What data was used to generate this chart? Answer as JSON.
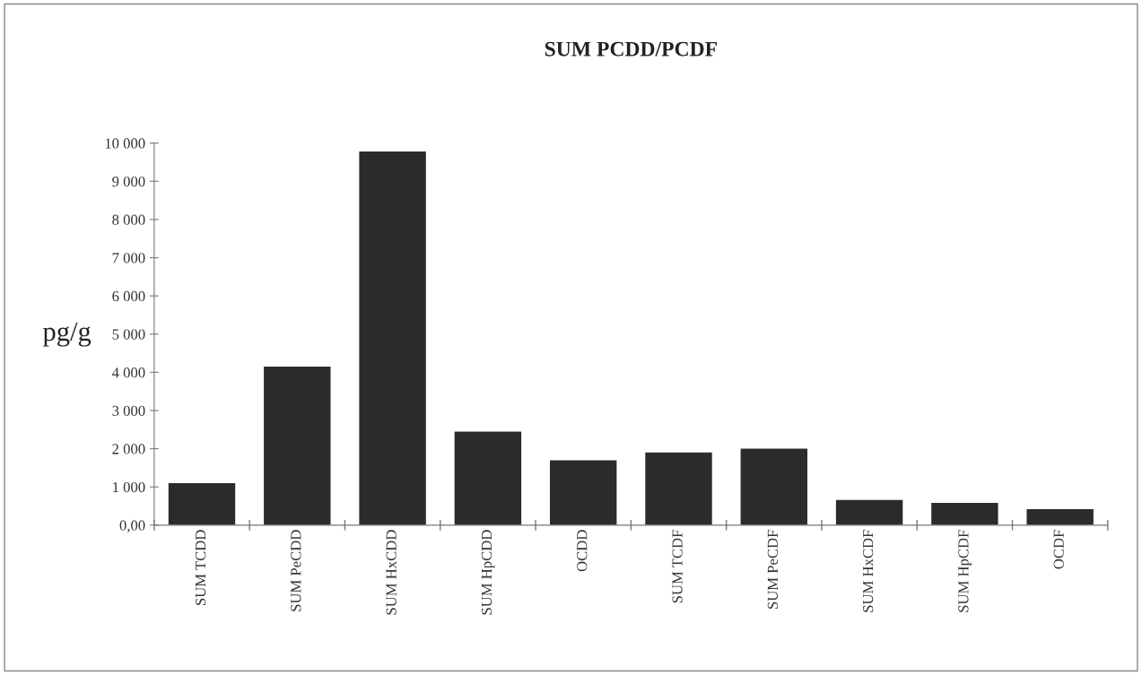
{
  "chart_data": {
    "type": "bar",
    "title": "SUM PCDD/PCDF",
    "ylabel": "pg/g",
    "categories": [
      "SUM TCDD",
      "SUM PeCDD",
      "SUM HxCDD",
      "SUM HpCDD",
      "OCDD",
      "SUM TCDF",
      "SUM PeCDF",
      "SUM HxCDF",
      "SUM HpCDF",
      "OCDF"
    ],
    "values": [
      1100,
      4150,
      9780,
      2450,
      1700,
      1900,
      2000,
      660,
      580,
      420
    ],
    "color": "#2b2b2b",
    "ylim": [
      0,
      10000
    ],
    "yticks": [
      {
        "value": 0,
        "label": "0,00"
      },
      {
        "value": 1000,
        "label": "1 000"
      },
      {
        "value": 2000,
        "label": "2 000"
      },
      {
        "value": 3000,
        "label": "3 000"
      },
      {
        "value": 4000,
        "label": "4 000"
      },
      {
        "value": 5000,
        "label": "5 000"
      },
      {
        "value": 6000,
        "label": "6 000"
      },
      {
        "value": 7000,
        "label": "7 000"
      },
      {
        "value": 8000,
        "label": "8 000"
      },
      {
        "value": 9000,
        "label": "9 000"
      },
      {
        "value": 10000,
        "label": "10 000"
      }
    ],
    "grid": false
  }
}
